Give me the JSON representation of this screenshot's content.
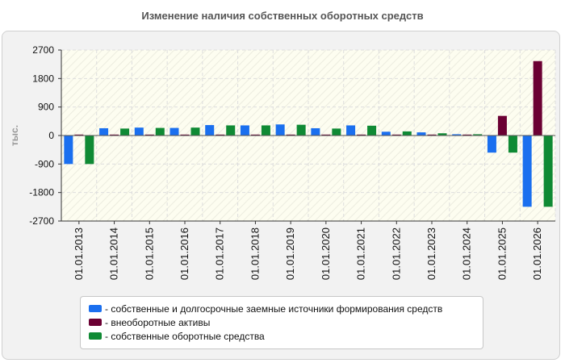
{
  "chart_data": {
    "type": "bar",
    "title": "Изменение наличия собственных оборотных средств",
    "ylabel": "тыс.",
    "xlabel": "",
    "ylim": [
      -2700,
      2700
    ],
    "yticks": [
      2700,
      1800,
      900,
      0,
      -900,
      -1800,
      -2700
    ],
    "grid": true,
    "legend_position": "bottom",
    "categories": [
      "01.01.2013",
      "01.01.2014",
      "01.01.2015",
      "01.01.2016",
      "01.01.2017",
      "01.01.2018",
      "01.01.2019",
      "01.01.2020",
      "01.01.2021",
      "01.01.2022",
      "01.01.2023",
      "01.01.2024",
      "01.01.2025",
      "01.01.2026"
    ],
    "series": [
      {
        "name": "- собственные и долгосрочные заемные источники формирования средств",
        "color": "#1a6fef",
        "values": [
          -900,
          230,
          250,
          240,
          330,
          320,
          350,
          230,
          320,
          120,
          100,
          40,
          -540,
          -2250
        ]
      },
      {
        "name": "- внеоборотные активы",
        "color": "#6b0033",
        "values": [
          30,
          30,
          30,
          30,
          30,
          30,
          30,
          30,
          30,
          30,
          30,
          30,
          620,
          2350
        ]
      },
      {
        "name": "- собственные оборотные средства",
        "color": "#0f8a34",
        "values": [
          -900,
          220,
          240,
          250,
          320,
          320,
          340,
          220,
          310,
          130,
          70,
          40,
          -540,
          -2250
        ]
      }
    ]
  }
}
